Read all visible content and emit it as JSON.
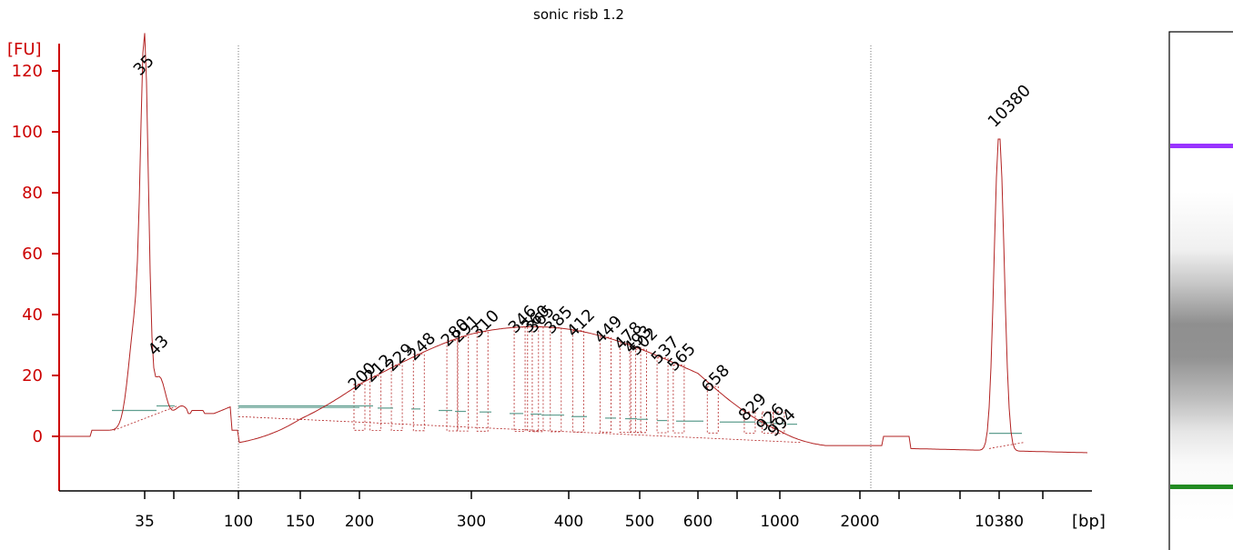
{
  "chart_data": {
    "type": "line",
    "title": "sonic risb 1.2",
    "ylabel": "[FU]",
    "xlabel": "[bp]",
    "ylim": [
      -15,
      125
    ],
    "y_ticks": [
      0,
      20,
      40,
      60,
      80,
      100,
      120
    ],
    "x_ticks": [
      "35",
      "100",
      "150",
      "200",
      "300",
      "400",
      "500",
      "600",
      "1000",
      "2000",
      "10380"
    ],
    "colors": {
      "trace": "#b22222",
      "axis": "#cc0000",
      "baseline": "#5f9e8f",
      "marker_lower": "#228b22",
      "marker_upper": "#9933ff",
      "gel_background": "#ffffff"
    },
    "peaks": [
      {
        "bp": 35,
        "fu": 117,
        "label": "35",
        "color": "#228b22"
      },
      {
        "bp": 43,
        "fu": 25,
        "label": "43",
        "color": "#000000"
      },
      {
        "bp": 200,
        "fu": 31,
        "label": "200",
        "color": "#000000"
      },
      {
        "bp": 212,
        "fu": 32,
        "label": "212",
        "color": "#000000"
      },
      {
        "bp": 229,
        "fu": 33,
        "label": "229",
        "color": "#000000"
      },
      {
        "bp": 248,
        "fu": 35,
        "label": "248",
        "color": "#000000"
      },
      {
        "bp": 280,
        "fu": 36,
        "label": "280",
        "color": "#000000"
      },
      {
        "bp": 291,
        "fu": 37,
        "label": "291",
        "color": "#000000"
      },
      {
        "bp": 310,
        "fu": 38,
        "label": "310",
        "color": "#000000"
      },
      {
        "bp": 346,
        "fu": 39,
        "label": "346",
        "color": "#000000"
      },
      {
        "bp": 360,
        "fu": 38.5,
        "label": "360",
        "color": "#000000"
      },
      {
        "bp": 365,
        "fu": 38.5,
        "label": "365",
        "color": "#000000"
      },
      {
        "bp": 385,
        "fu": 38,
        "label": "385",
        "color": "#000000"
      },
      {
        "bp": 412,
        "fu": 37,
        "label": "412",
        "color": "#000000"
      },
      {
        "bp": 449,
        "fu": 36,
        "label": "449",
        "color": "#000000"
      },
      {
        "bp": 478,
        "fu": 35.5,
        "label": "478",
        "color": "#000000"
      },
      {
        "bp": 493,
        "fu": 35,
        "label": "493",
        "color": "#000000"
      },
      {
        "bp": 502,
        "fu": 34.5,
        "label": "502",
        "color": "#000000"
      },
      {
        "bp": 537,
        "fu": 33,
        "label": "537",
        "color": "#000000"
      },
      {
        "bp": 565,
        "fu": 31,
        "label": "565",
        "color": "#000000"
      },
      {
        "bp": 658,
        "fu": 26,
        "label": "658",
        "color": "#000000"
      },
      {
        "bp": 829,
        "fu": 17,
        "label": "829",
        "color": "#000000"
      },
      {
        "bp": 926,
        "fu": 13,
        "label": "926",
        "color": "#000000"
      },
      {
        "bp": 994,
        "fu": 11,
        "label": "994",
        "color": "#000000"
      },
      {
        "bp": 10380,
        "fu": 100,
        "label": "10380",
        "color": "#9933ff"
      }
    ],
    "grid": false
  }
}
